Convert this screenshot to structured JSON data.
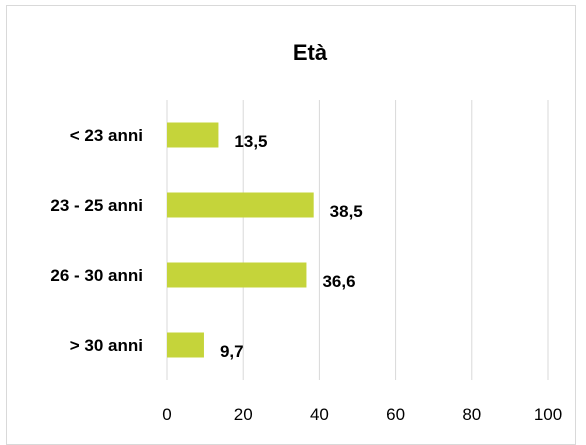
{
  "chart_data": {
    "type": "bar",
    "orientation": "horizontal",
    "title": "Età",
    "categories": [
      "< 23 anni",
      "23 - 25 anni",
      "26 - 30 anni",
      "> 30 anni"
    ],
    "values": [
      13.5,
      38.5,
      36.6,
      9.7
    ],
    "data_labels": [
      "13,5",
      "38,5",
      "36,6",
      "9,7"
    ],
    "xlim": [
      0,
      100
    ],
    "x_ticks": [
      0,
      20,
      40,
      60,
      80,
      100
    ],
    "x_tick_labels": [
      "0",
      "20",
      "40",
      "60",
      "80",
      "100"
    ],
    "xlabel": "",
    "ylabel": "",
    "grid": true,
    "legend": "none",
    "bar_color": "#c5d43a",
    "gridline_color": "#d9d9d9"
  }
}
